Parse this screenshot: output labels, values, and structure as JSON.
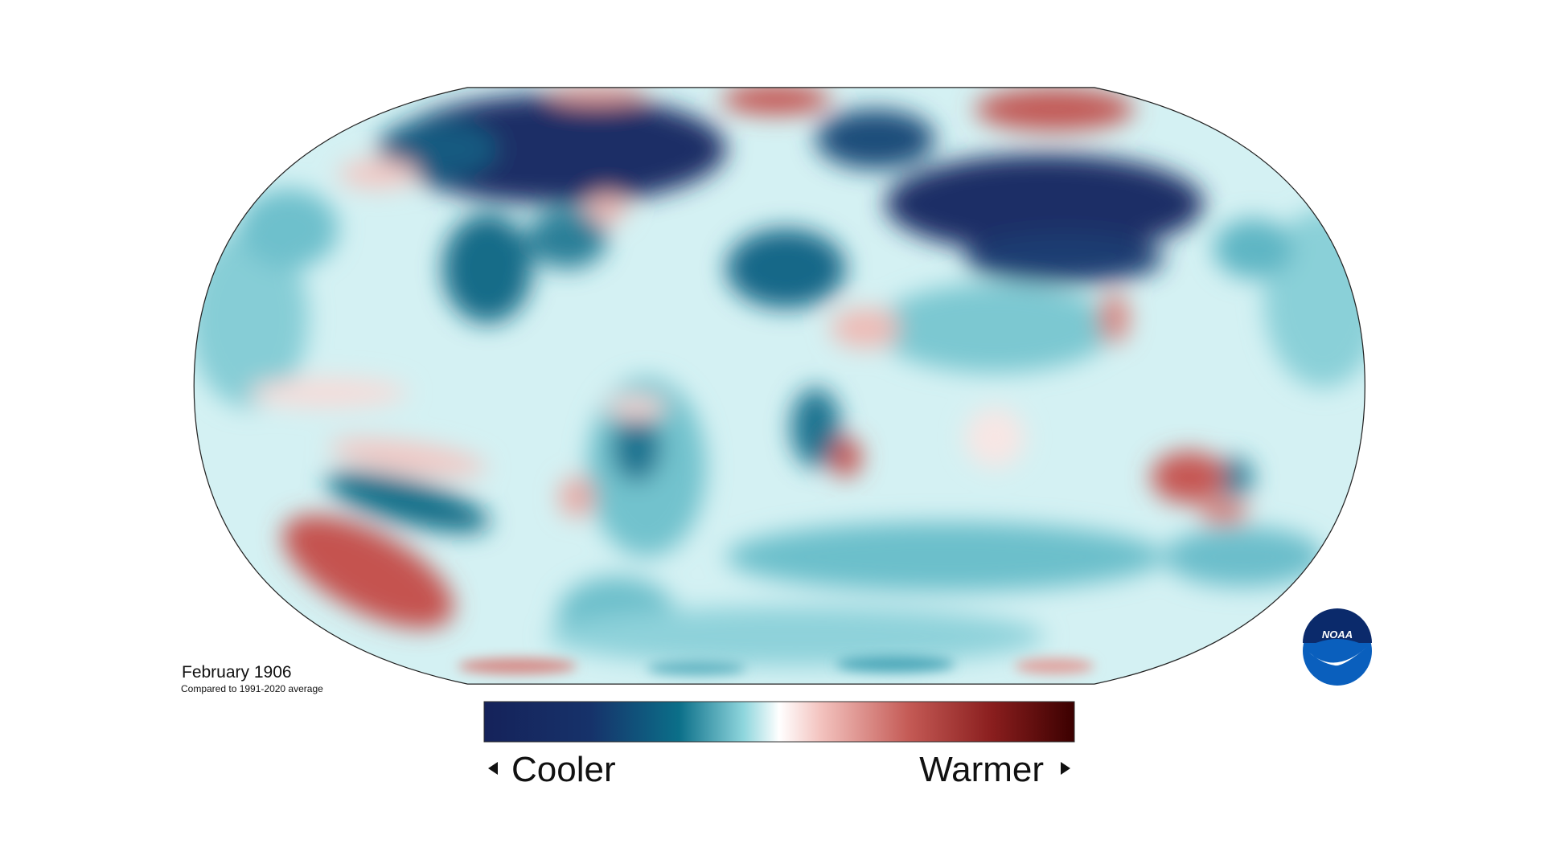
{
  "map": {
    "title": "February 1906",
    "subtitle": "Compared to 1991-2020 average"
  },
  "legend": {
    "low_label": "Cooler",
    "high_label": "Warmer"
  },
  "logo": {
    "text": "NOAA"
  }
}
